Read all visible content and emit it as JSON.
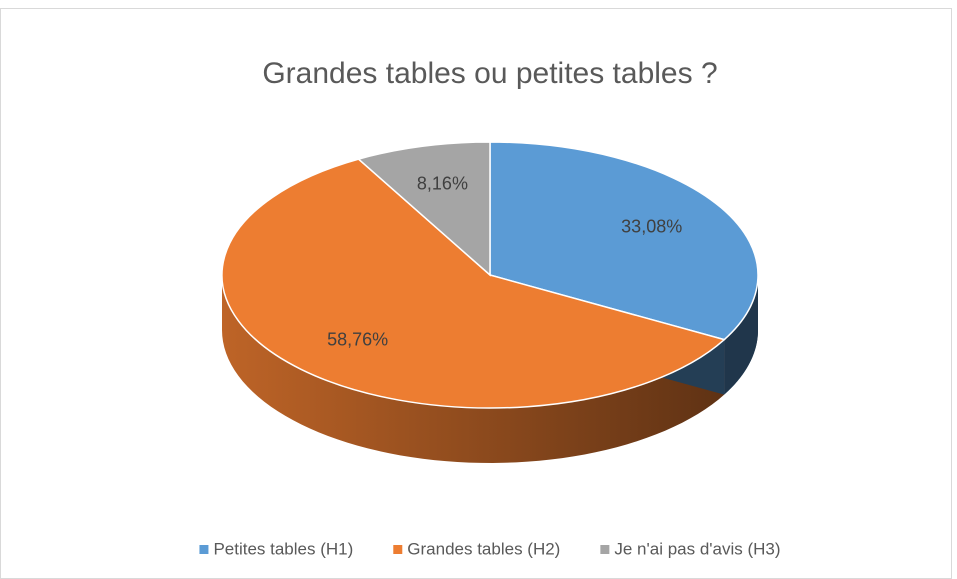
{
  "chart_data": {
    "type": "pie3d",
    "title": "Grandes tables ou petites tables ?",
    "categories": [
      "Petites tables (H1)",
      "Grandes tables (H2)",
      "Je n'ai pas d'avis (H3)"
    ],
    "values": [
      33.08,
      58.76,
      8.16
    ],
    "value_labels": [
      "33,08%",
      "58,76%",
      "8,16%"
    ],
    "colors": [
      "#5b9bd5",
      "#ed7d31",
      "#a5a5a5"
    ],
    "legend": "bottom"
  }
}
